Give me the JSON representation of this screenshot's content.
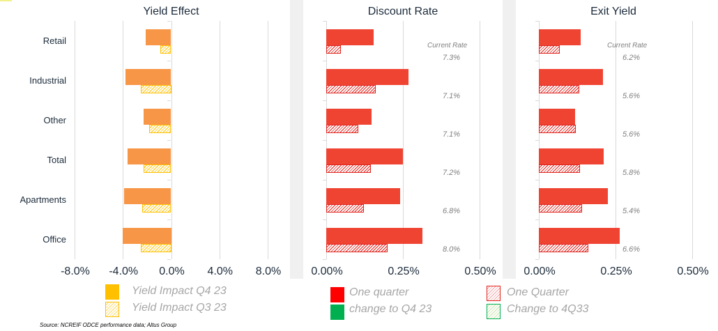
{
  "chart_data": [
    {
      "type": "bar",
      "orientation": "horizontal",
      "title": "Yield Effect",
      "categories": [
        "Retail",
        "Industrial",
        "Other",
        "Total",
        "Apartments",
        "Office"
      ],
      "series": [
        {
          "name": "Yield Impact Q4 23",
          "style": "solid",
          "color": "#f79646",
          "values": [
            -2.1,
            -3.8,
            -2.3,
            -3.6,
            -3.9,
            -4.0
          ]
        },
        {
          "name": "Yield Impact Q3 23",
          "style": "hatched",
          "color": "#ffc000",
          "values": [
            -0.9,
            -2.5,
            -1.8,
            -2.3,
            -2.4,
            -2.5
          ]
        }
      ],
      "xlim": [
        -8.0,
        8.0
      ],
      "xticks": [
        "-8.0%",
        "-4.0%",
        "0.0%",
        "4.0%",
        "8.0%"
      ],
      "unit": "%",
      "grid": true
    },
    {
      "type": "bar",
      "orientation": "horizontal",
      "title": "Discount Rate",
      "categories": [
        "Retail",
        "Industrial",
        "Other",
        "Total",
        "Apartments",
        "Office"
      ],
      "series": [
        {
          "name": "One quarter change to Q4 23",
          "style": "solid",
          "color": "#f04433",
          "values": [
            0.155,
            0.268,
            0.148,
            0.25,
            0.241,
            0.314
          ]
        },
        {
          "name": "One Quarter Change to 4Q33",
          "style": "hatched",
          "color": "#e0221c",
          "values": [
            0.048,
            0.161,
            0.105,
            0.145,
            0.123,
            0.2
          ]
        }
      ],
      "current_rate_label": "Current Rate",
      "current_rates": [
        "7.3%",
        "7.1%",
        "7.1%",
        "7.2%",
        "6.8%",
        "8.0%"
      ],
      "xlim": [
        0.0,
        0.5
      ],
      "xticks": [
        "0.00%",
        "0.25%",
        "0.50%"
      ],
      "unit": "%",
      "grid": true
    },
    {
      "type": "bar",
      "orientation": "horizontal",
      "title": "Exit Yield",
      "categories": [
        "Retail",
        "Industrial",
        "Other",
        "Total",
        "Apartments",
        "Office"
      ],
      "series": [
        {
          "name": "One quarter change to Q4 23",
          "style": "solid",
          "color": "#f04433",
          "values": [
            0.136,
            0.209,
            0.118,
            0.211,
            0.225,
            0.264
          ]
        },
        {
          "name": "One Quarter Change to 4Q33",
          "style": "hatched",
          "color": "#e0221c",
          "values": [
            0.068,
            0.132,
            0.12,
            0.134,
            0.141,
            0.161
          ]
        }
      ],
      "current_rate_label": "Current Rate",
      "current_rates": [
        "6.2%",
        "5.6%",
        "5.6%",
        "5.8%",
        "5.4%",
        "6.6%"
      ],
      "xlim": [
        0.0,
        0.5
      ],
      "xticks": [
        "0.00%",
        "0.25%",
        "0.50%"
      ],
      "unit": "%",
      "grid": true
    }
  ],
  "legends": {
    "yield": [
      "Yield Impact Q4 23",
      "Yield Impact Q3 23"
    ],
    "discount": [
      "One quarter",
      "change to Q4 23"
    ],
    "exit": [
      "One Quarter",
      "Change to 4Q33"
    ]
  },
  "source": "Source: NCREIF ODCE performance data; Altus Group",
  "colors": {
    "yield_solid": "#f79646",
    "yield_hatch": "#ffc000",
    "rate_solid": "#f04433",
    "rate_hatch": "#e0221c",
    "legend_red": "#ff0000",
    "legend_green": "#00b050"
  }
}
